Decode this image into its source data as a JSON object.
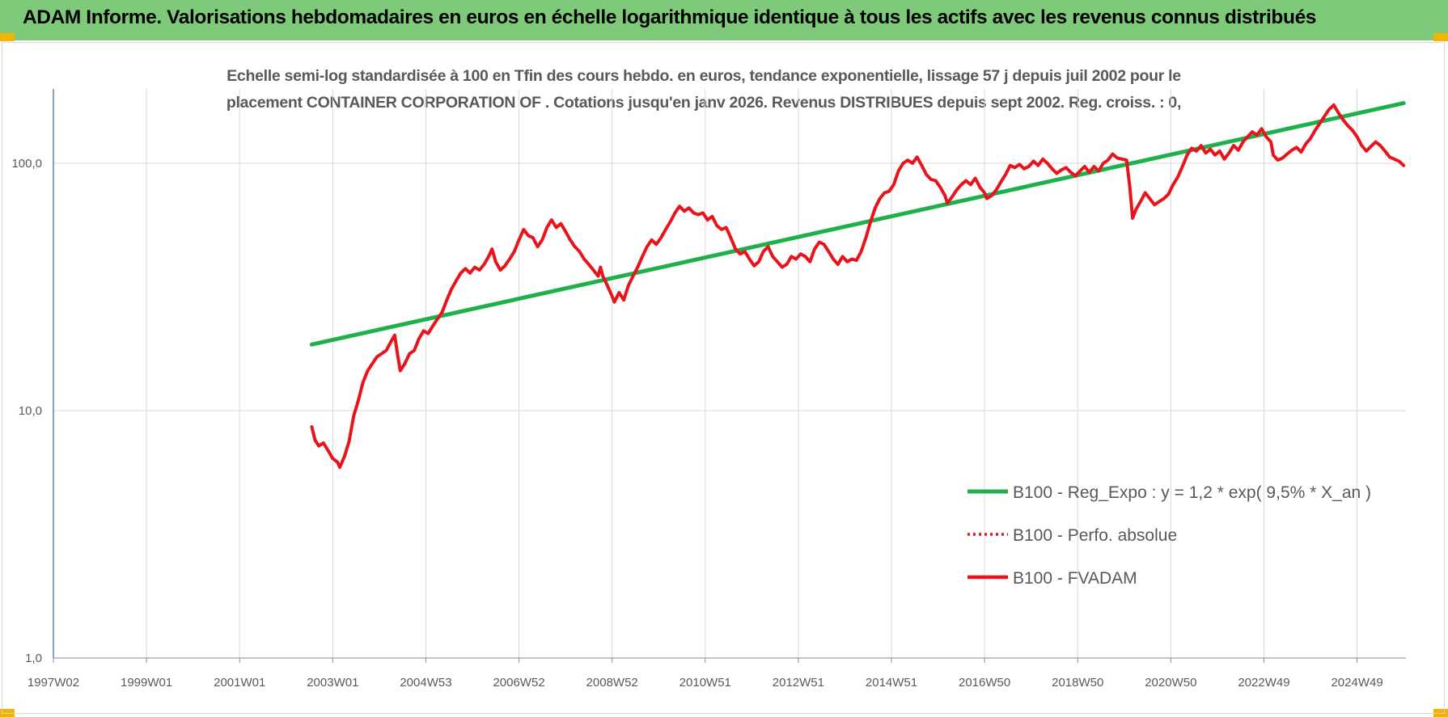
{
  "banner": {
    "title": "ADAM Informe. Valorisations hebdomadaires en euros en échelle logarithmique identique à tous les actifs avec les revenus connus distribués"
  },
  "colors": {
    "banner_bg": "#7fc97a",
    "corner": "#f2b400",
    "trend": "#1fb04c",
    "price": "#e8141c",
    "grid": "#d9d9d9",
    "axis": "#4472c4"
  },
  "chart_data": {
    "type": "line",
    "title_line1": "Echelle semi-log standardisée à 100 en Tfin des cours hebdo. en euros, tendance exponentielle, lissage 57 j depuis juil 2002 pour le",
    "title_line2": "placement CONTAINER CORPORATION OF . Cotations jusqu'en janv 2026. Revenus DISTRIBUES depuis sept 2002. Reg. croiss. : 0,",
    "y_scale": "log",
    "ylim": [
      1,
      200
    ],
    "y_ticks": [
      {
        "value": 1,
        "label": "1,0"
      },
      {
        "value": 10,
        "label": "10,0"
      },
      {
        "value": 100,
        "label": "100,0"
      }
    ],
    "xlim": [
      1997.0,
      2026.05
    ],
    "x_ticks": [
      {
        "value": 1997.0,
        "label": "1997W02"
      },
      {
        "value": 1999.0,
        "label": "1999W01"
      },
      {
        "value": 2001.0,
        "label": "2001W01"
      },
      {
        "value": 2003.0,
        "label": "2003W01"
      },
      {
        "value": 2005.0,
        "label": "2004W53"
      },
      {
        "value": 2007.0,
        "label": "2006W52"
      },
      {
        "value": 2009.0,
        "label": "2008W52"
      },
      {
        "value": 2011.0,
        "label": "2010W51"
      },
      {
        "value": 2013.0,
        "label": "2012W51"
      },
      {
        "value": 2015.0,
        "label": "2014W51"
      },
      {
        "value": 2017.0,
        "label": "2016W50"
      },
      {
        "value": 2019.0,
        "label": "2018W50"
      },
      {
        "value": 2021.0,
        "label": "2020W50"
      },
      {
        "value": 2023.0,
        "label": "2022W49"
      },
      {
        "value": 2025.0,
        "label": "2024W49"
      }
    ],
    "grid": true,
    "legend_position": "bottom-right",
    "series": [
      {
        "name": "B100 - Reg_Expo : y = 1,2 * exp( 9,5% *  X_an )",
        "style": "solid-thick",
        "color": "#1fb04c",
        "points": [
          [
            2002.55,
            18.5
          ],
          [
            2026.0,
            175
          ]
        ]
      },
      {
        "name": "B100 - Perfo. absolue",
        "style": "dotted",
        "color": "#e8141c",
        "points": []
      },
      {
        "name": "B100 - FVADAM",
        "style": "solid",
        "color": "#e8141c",
        "points": [
          [
            2002.55,
            8.6
          ],
          [
            2002.62,
            7.6
          ],
          [
            2002.7,
            7.2
          ],
          [
            2002.8,
            7.4
          ],
          [
            2002.9,
            6.9
          ],
          [
            2003.0,
            6.4
          ],
          [
            2003.1,
            6.2
          ],
          [
            2003.15,
            5.9
          ],
          [
            2003.25,
            6.5
          ],
          [
            2003.35,
            7.5
          ],
          [
            2003.45,
            9.5
          ],
          [
            2003.55,
            11.0
          ],
          [
            2003.65,
            13.0
          ],
          [
            2003.75,
            14.5
          ],
          [
            2003.85,
            15.5
          ],
          [
            2003.95,
            16.5
          ],
          [
            2004.05,
            17.0
          ],
          [
            2004.15,
            17.5
          ],
          [
            2004.25,
            19.0
          ],
          [
            2004.33,
            20.2
          ],
          [
            2004.4,
            16.5
          ],
          [
            2004.45,
            14.5
          ],
          [
            2004.55,
            15.5
          ],
          [
            2004.65,
            17.0
          ],
          [
            2004.75,
            17.5
          ],
          [
            2004.85,
            19.5
          ],
          [
            2004.95,
            21.0
          ],
          [
            2005.05,
            20.5
          ],
          [
            2005.15,
            22.0
          ],
          [
            2005.25,
            23.5
          ],
          [
            2005.35,
            25.0
          ],
          [
            2005.45,
            28.0
          ],
          [
            2005.55,
            31.0
          ],
          [
            2005.65,
            33.5
          ],
          [
            2005.75,
            36.0
          ],
          [
            2005.85,
            37.5
          ],
          [
            2005.95,
            36.0
          ],
          [
            2006.05,
            38.0
          ],
          [
            2006.15,
            37.0
          ],
          [
            2006.25,
            39.0
          ],
          [
            2006.35,
            42.0
          ],
          [
            2006.42,
            45.0
          ],
          [
            2006.5,
            40.0
          ],
          [
            2006.6,
            37.0
          ],
          [
            2006.7,
            38.5
          ],
          [
            2006.8,
            41.0
          ],
          [
            2006.9,
            44.0
          ],
          [
            2007.0,
            49.0
          ],
          [
            2007.1,
            54.0
          ],
          [
            2007.2,
            51.0
          ],
          [
            2007.3,
            50.0
          ],
          [
            2007.4,
            46.0
          ],
          [
            2007.5,
            49.0
          ],
          [
            2007.6,
            55.0
          ],
          [
            2007.7,
            59.0
          ],
          [
            2007.8,
            55.0
          ],
          [
            2007.9,
            57.0
          ],
          [
            2008.0,
            53.0
          ],
          [
            2008.1,
            49.0
          ],
          [
            2008.2,
            46.0
          ],
          [
            2008.3,
            44.0
          ],
          [
            2008.4,
            41.0
          ],
          [
            2008.5,
            39.0
          ],
          [
            2008.6,
            37.0
          ],
          [
            2008.7,
            35.0
          ],
          [
            2008.75,
            38.0
          ],
          [
            2008.8,
            35.0
          ],
          [
            2008.9,
            32.0
          ],
          [
            2009.0,
            29.0
          ],
          [
            2009.05,
            27.5
          ],
          [
            2009.15,
            30.0
          ],
          [
            2009.25,
            28.0
          ],
          [
            2009.35,
            32.0
          ],
          [
            2009.45,
            35.0
          ],
          [
            2009.55,
            38.0
          ],
          [
            2009.65,
            42.0
          ],
          [
            2009.75,
            46.0
          ],
          [
            2009.85,
            49.0
          ],
          [
            2009.95,
            47.0
          ],
          [
            2010.05,
            50.0
          ],
          [
            2010.15,
            54.0
          ],
          [
            2010.25,
            58.0
          ],
          [
            2010.35,
            63.0
          ],
          [
            2010.45,
            67.0
          ],
          [
            2010.55,
            64.0
          ],
          [
            2010.65,
            66.0
          ],
          [
            2010.75,
            63.0
          ],
          [
            2010.85,
            62.0
          ],
          [
            2010.95,
            63.0
          ],
          [
            2011.05,
            59.0
          ],
          [
            2011.15,
            61.0
          ],
          [
            2011.25,
            56.0
          ],
          [
            2011.35,
            54.0
          ],
          [
            2011.45,
            55.0
          ],
          [
            2011.55,
            50.0
          ],
          [
            2011.65,
            45.0
          ],
          [
            2011.75,
            43.0
          ],
          [
            2011.85,
            44.0
          ],
          [
            2011.95,
            41.0
          ],
          [
            2012.05,
            38.5
          ],
          [
            2012.15,
            40.0
          ],
          [
            2012.25,
            44.0
          ],
          [
            2012.35,
            46.0
          ],
          [
            2012.45,
            42.0
          ],
          [
            2012.55,
            40.0
          ],
          [
            2012.65,
            38.0
          ],
          [
            2012.75,
            39.0
          ],
          [
            2012.85,
            42.0
          ],
          [
            2012.95,
            41.0
          ],
          [
            2013.05,
            43.0
          ],
          [
            2013.15,
            42.0
          ],
          [
            2013.25,
            40.0
          ],
          [
            2013.35,
            45.0
          ],
          [
            2013.45,
            48.0
          ],
          [
            2013.55,
            47.0
          ],
          [
            2013.65,
            44.0
          ],
          [
            2013.75,
            41.0
          ],
          [
            2013.85,
            39.0
          ],
          [
            2013.95,
            42.0
          ],
          [
            2014.05,
            40.0
          ],
          [
            2014.15,
            41.0
          ],
          [
            2014.25,
            40.5
          ],
          [
            2014.35,
            44.0
          ],
          [
            2014.45,
            50.0
          ],
          [
            2014.55,
            58.0
          ],
          [
            2014.65,
            66.0
          ],
          [
            2014.75,
            72.0
          ],
          [
            2014.85,
            76.0
          ],
          [
            2014.95,
            77.0
          ],
          [
            2015.05,
            82.0
          ],
          [
            2015.15,
            93.0
          ],
          [
            2015.25,
            100.0
          ],
          [
            2015.35,
            103.0
          ],
          [
            2015.45,
            100.0
          ],
          [
            2015.55,
            106.0
          ],
          [
            2015.65,
            98.0
          ],
          [
            2015.75,
            90.0
          ],
          [
            2015.85,
            86.0
          ],
          [
            2015.95,
            85.0
          ],
          [
            2016.05,
            80.0
          ],
          [
            2016.15,
            74.0
          ],
          [
            2016.2,
            69.0
          ],
          [
            2016.3,
            73.0
          ],
          [
            2016.4,
            78.0
          ],
          [
            2016.5,
            82.0
          ],
          [
            2016.6,
            85.0
          ],
          [
            2016.7,
            82.0
          ],
          [
            2016.8,
            87.0
          ],
          [
            2016.9,
            80.0
          ],
          [
            2017.0,
            76.0
          ],
          [
            2017.05,
            72.0
          ],
          [
            2017.15,
            74.0
          ],
          [
            2017.25,
            78.0
          ],
          [
            2017.35,
            84.0
          ],
          [
            2017.45,
            90.0
          ],
          [
            2017.55,
            98.0
          ],
          [
            2017.65,
            96.0
          ],
          [
            2017.75,
            99.0
          ],
          [
            2017.85,
            95.0
          ],
          [
            2017.95,
            97.0
          ],
          [
            2018.05,
            102.0
          ],
          [
            2018.15,
            98.0
          ],
          [
            2018.25,
            104.0
          ],
          [
            2018.35,
            100.0
          ],
          [
            2018.45,
            95.0
          ],
          [
            2018.55,
            91.0
          ],
          [
            2018.65,
            94.0
          ],
          [
            2018.75,
            96.0
          ],
          [
            2018.85,
            92.0
          ],
          [
            2018.95,
            89.0
          ],
          [
            2019.05,
            93.0
          ],
          [
            2019.15,
            97.0
          ],
          [
            2019.25,
            92.0
          ],
          [
            2019.35,
            97.0
          ],
          [
            2019.45,
            93.0
          ],
          [
            2019.55,
            100.0
          ],
          [
            2019.65,
            103.0
          ],
          [
            2019.75,
            109.0
          ],
          [
            2019.85,
            105.0
          ],
          [
            2019.95,
            104.0
          ],
          [
            2020.05,
            103.0
          ],
          [
            2020.12,
            80.0
          ],
          [
            2020.18,
            60.0
          ],
          [
            2020.25,
            65.0
          ],
          [
            2020.35,
            70.0
          ],
          [
            2020.45,
            76.0
          ],
          [
            2020.55,
            72.0
          ],
          [
            2020.65,
            68.0
          ],
          [
            2020.75,
            70.0
          ],
          [
            2020.85,
            72.0
          ],
          [
            2020.95,
            75.0
          ],
          [
            2021.05,
            82.0
          ],
          [
            2021.15,
            88.0
          ],
          [
            2021.25,
            97.0
          ],
          [
            2021.35,
            108.0
          ],
          [
            2021.45,
            115.0
          ],
          [
            2021.55,
            112.0
          ],
          [
            2021.65,
            118.0
          ],
          [
            2021.75,
            110.0
          ],
          [
            2021.85,
            114.0
          ],
          [
            2021.95,
            108.0
          ],
          [
            2022.05,
            112.0
          ],
          [
            2022.15,
            104.0
          ],
          [
            2022.25,
            110.0
          ],
          [
            2022.35,
            118.0
          ],
          [
            2022.45,
            113.0
          ],
          [
            2022.55,
            122.0
          ],
          [
            2022.65,
            128.0
          ],
          [
            2022.75,
            134.0
          ],
          [
            2022.85,
            130.0
          ],
          [
            2022.95,
            138.0
          ],
          [
            2023.05,
            128.0
          ],
          [
            2023.15,
            122.0
          ],
          [
            2023.2,
            108.0
          ],
          [
            2023.3,
            103.0
          ],
          [
            2023.4,
            105.0
          ],
          [
            2023.5,
            109.0
          ],
          [
            2023.6,
            113.0
          ],
          [
            2023.7,
            116.0
          ],
          [
            2023.8,
            111.0
          ],
          [
            2023.9,
            120.0
          ],
          [
            2024.0,
            126.0
          ],
          [
            2024.1,
            136.0
          ],
          [
            2024.2,
            145.0
          ],
          [
            2024.3,
            155.0
          ],
          [
            2024.4,
            165.0
          ],
          [
            2024.5,
            172.0
          ],
          [
            2024.6,
            160.0
          ],
          [
            2024.7,
            150.0
          ],
          [
            2024.8,
            142.0
          ],
          [
            2024.9,
            136.0
          ],
          [
            2025.0,
            128.0
          ],
          [
            2025.1,
            118.0
          ],
          [
            2025.2,
            112.0
          ],
          [
            2025.3,
            117.0
          ],
          [
            2025.4,
            122.0
          ],
          [
            2025.5,
            118.0
          ],
          [
            2025.6,
            112.0
          ],
          [
            2025.7,
            106.0
          ],
          [
            2025.8,
            104.0
          ],
          [
            2025.9,
            102.0
          ],
          [
            2026.0,
            98.0
          ]
        ]
      }
    ]
  }
}
